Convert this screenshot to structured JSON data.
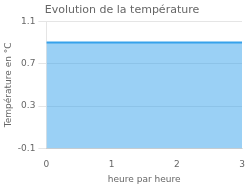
{
  "chart_data": {
    "type": "area",
    "title": "Evolution de la température",
    "xlabel": "heure par heure",
    "ylabel": "Température en °C",
    "x": [
      0,
      3
    ],
    "values": [
      0.9,
      0.9
    ],
    "xlim": [
      0,
      3
    ],
    "ylim": [
      -0.1,
      1.1
    ],
    "xticks": [
      0,
      1,
      2,
      3
    ],
    "yticks": [
      -0.1,
      0.3,
      0.7,
      1.1
    ],
    "grid": "y"
  }
}
